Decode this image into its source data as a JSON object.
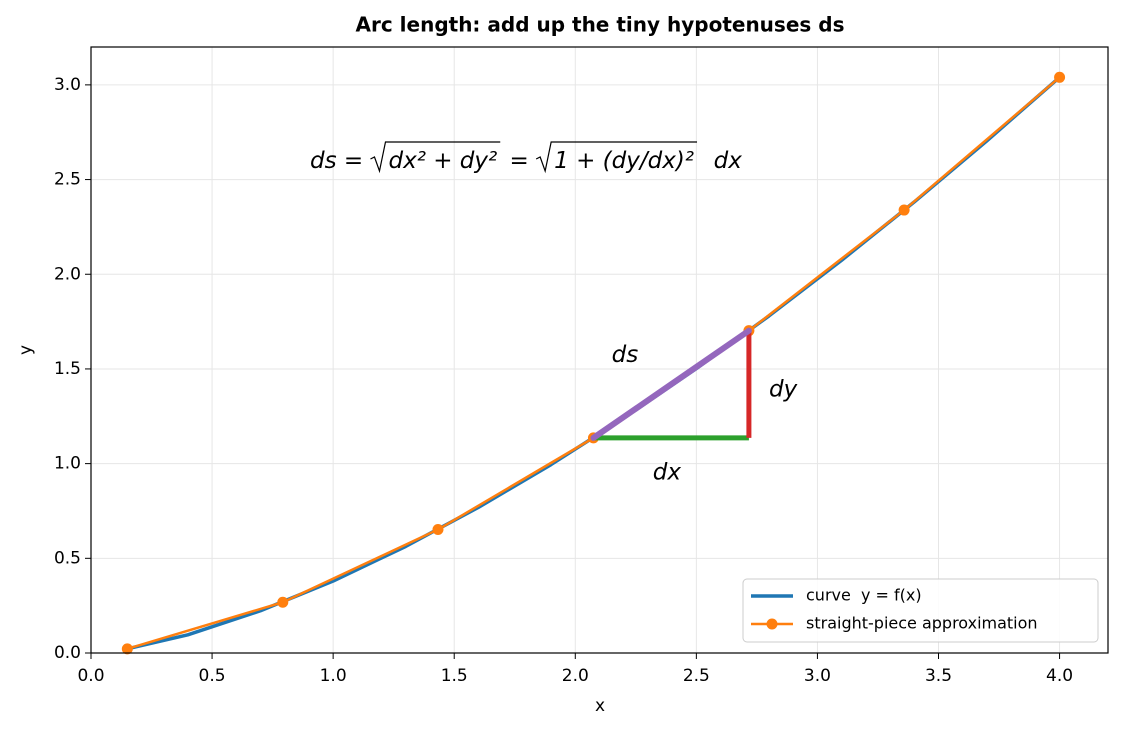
{
  "chart_data": {
    "type": "line",
    "title": "Arc length: add up the tiny hypotenuses ds",
    "xlabel": "x",
    "ylabel": "y",
    "xlim": [
      0,
      4.2
    ],
    "ylim": [
      0,
      3.2
    ],
    "xticks": [
      {
        "value": 0,
        "label": "0.0"
      },
      {
        "value": 0.5,
        "label": "0.5"
      },
      {
        "value": 1,
        "label": "1.0"
      },
      {
        "value": 1.5,
        "label": "1.5"
      },
      {
        "value": 2,
        "label": "2.0"
      },
      {
        "value": 2.5,
        "label": "2.5"
      },
      {
        "value": 3,
        "label": "3.0"
      },
      {
        "value": 3.5,
        "label": "3.5"
      },
      {
        "value": 4,
        "label": "4.0"
      }
    ],
    "yticks": [
      {
        "value": 0,
        "label": "0.0"
      },
      {
        "value": 0.5,
        "label": "0.5"
      },
      {
        "value": 1,
        "label": "1.0"
      },
      {
        "value": 1.5,
        "label": "1.5"
      },
      {
        "value": 2,
        "label": "2.0"
      },
      {
        "value": 2.5,
        "label": "2.5"
      },
      {
        "value": 3,
        "label": "3.0"
      }
    ],
    "grid": true,
    "legend": "lower right",
    "series": [
      {
        "name": "curve  y = f(x)",
        "color": "#1f77b4",
        "markers": false,
        "x": [
          0.15,
          0.4,
          0.7,
          1.0,
          1.3,
          1.6,
          1.9,
          2.2,
          2.5,
          2.8,
          3.1,
          3.4,
          3.7,
          4.0
        ],
        "values": [
          0.022,
          0.096,
          0.223,
          0.38,
          0.563,
          0.769,
          0.995,
          1.24,
          1.502,
          1.78,
          2.074,
          2.382,
          2.705,
          3.04
        ]
      },
      {
        "name": "straight-piece approximation",
        "color": "#ff7f0e",
        "markers": true,
        "x": [
          0.15,
          0.792,
          1.433,
          2.075,
          2.717,
          3.358,
          4.0
        ],
        "values": [
          0.022,
          0.268,
          0.652,
          1.136,
          1.702,
          2.339,
          3.04
        ]
      }
    ],
    "triangle": {
      "x0": 2.075,
      "x1": 2.717,
      "y0": 1.136,
      "y1": 1.702,
      "dx_color": "#2ca02c",
      "dy_color": "#d62728",
      "ds_color": "#9467bd"
    },
    "annotations": [
      {
        "text": "ds",
        "x": 2.15,
        "y": 1.57,
        "color": "#9467bd"
      },
      {
        "text": "dy",
        "x": 2.8,
        "y": 1.39,
        "color": "#d62728"
      },
      {
        "text": "dx",
        "x": 2.32,
        "y": 0.95,
        "color": "#2ca02c"
      }
    ],
    "formula": [
      {
        "text": "ds = ",
        "radical": false
      },
      {
        "text": "dx² + dy²",
        "radical": true
      },
      {
        "text": " = ",
        "radical": false
      },
      {
        "text": "1 + (dy/dx)²",
        "radical": true
      },
      {
        "text": "  dx",
        "radical": false
      }
    ]
  }
}
